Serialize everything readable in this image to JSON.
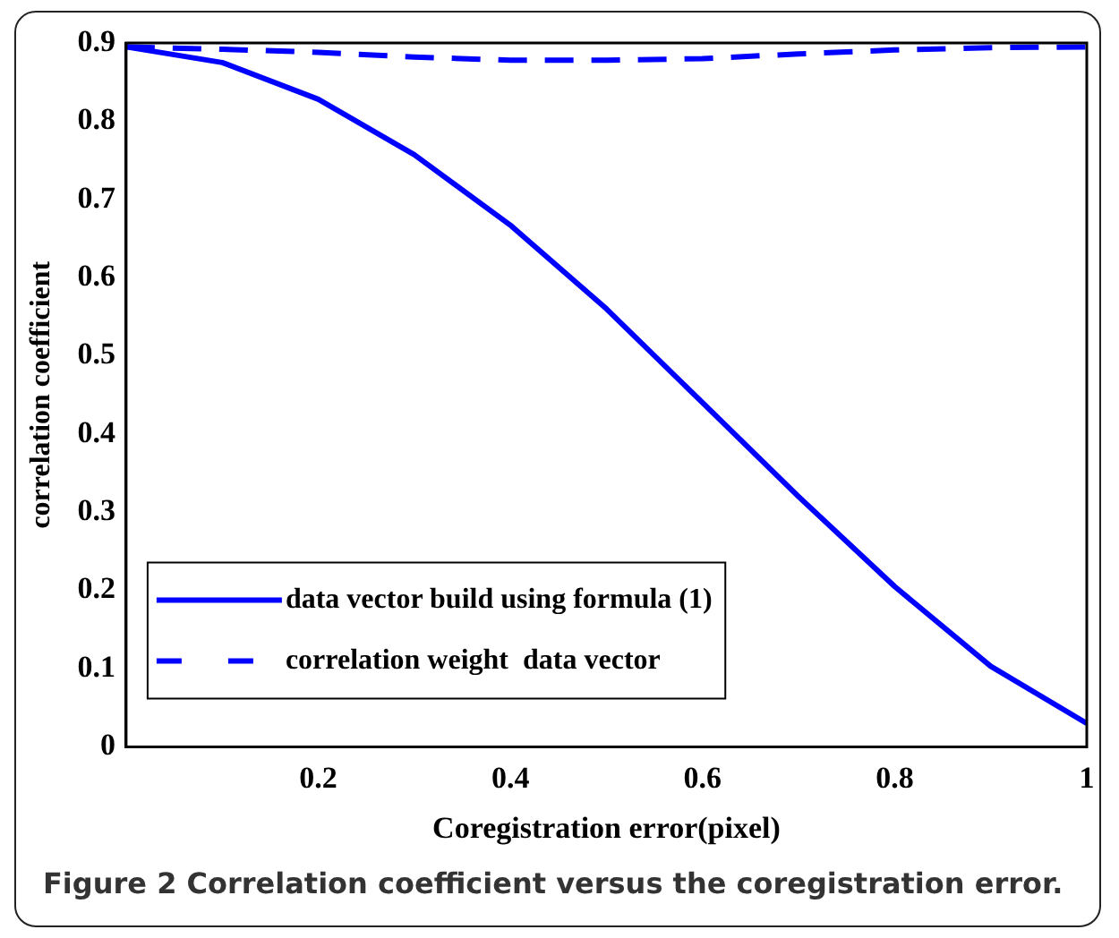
{
  "chart_data": {
    "type": "line",
    "xlabel": "Coregistration error(pixel)",
    "ylabel": "correlation coefficient",
    "x": [
      0,
      0.1,
      0.2,
      0.3,
      0.4,
      0.5,
      0.6,
      0.7,
      0.8,
      0.9,
      1
    ],
    "series": [
      {
        "name": "data vector build using formula (1)",
        "color": "#0000ff",
        "line_style": "solid",
        "values": [
          0.895,
          0.875,
          0.828,
          0.757,
          0.667,
          0.56,
          0.44,
          0.32,
          0.205,
          0.103,
          0.03
        ]
      },
      {
        "name": "correlation weight  data vector",
        "color": "#0000ff",
        "line_style": "dashed",
        "values": [
          0.895,
          0.892,
          0.888,
          0.882,
          0.878,
          0.878,
          0.88,
          0.886,
          0.891,
          0.894,
          0.895
        ]
      }
    ],
    "xlim": [
      0,
      1
    ],
    "xticks": [
      0.2,
      0.4,
      0.6,
      0.8,
      1
    ],
    "ylim": [
      0,
      0.9
    ],
    "yticks": [
      0,
      0.1,
      0.2,
      0.3,
      0.4,
      0.5,
      0.6,
      0.7,
      0.8,
      0.9
    ],
    "grid": false,
    "legend": "bottom left",
    "marker": "none",
    "annotations": [
      "Figure 2 Correlation coefficient versus the coregistration error."
    ]
  }
}
